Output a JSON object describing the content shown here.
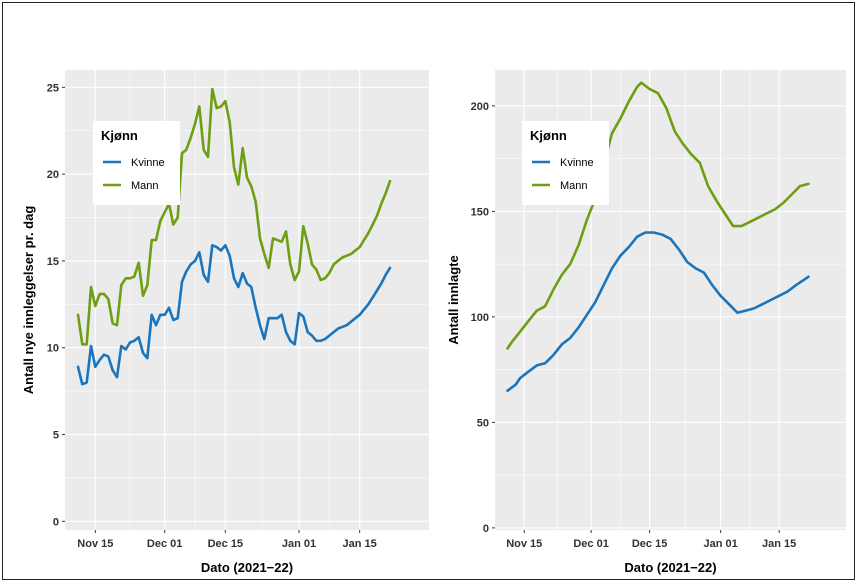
{
  "chart_data": [
    {
      "type": "line",
      "title": "",
      "xlabel": "Dato (2021−22)",
      "ylabel": "Antall nye innleggelser pr. dag",
      "xlim": [
        "2021-11-08",
        "2022-01-31"
      ],
      "ylim": [
        -0.5,
        26
      ],
      "y_ticks": [
        0,
        5,
        10,
        15,
        20,
        25
      ],
      "x_ticks": [
        {
          "date": "2021-11-15",
          "label": "Nov 15"
        },
        {
          "date": "2021-12-01",
          "label": "Dec 01"
        },
        {
          "date": "2021-12-15",
          "label": "Dec 15"
        },
        {
          "date": "2022-01-01",
          "label": "Jan 01"
        },
        {
          "date": "2022-01-15",
          "label": "Jan 15"
        }
      ],
      "grid": true,
      "legend": {
        "title": "Kjønn",
        "placement": "top-left"
      },
      "series": [
        {
          "name": "Kvinne",
          "color": "#1B75BC",
          "points": [
            [
              "2021-11-11",
              8.9
            ],
            [
              "2021-11-12",
              7.9
            ],
            [
              "2021-11-13",
              8.0
            ],
            [
              "2021-11-14",
              10.1
            ],
            [
              "2021-11-15",
              8.9
            ],
            [
              "2021-11-16",
              9.3
            ],
            [
              "2021-11-17",
              9.6
            ],
            [
              "2021-11-18",
              9.5
            ],
            [
              "2021-11-19",
              8.7
            ],
            [
              "2021-11-20",
              8.3
            ],
            [
              "2021-11-21",
              10.1
            ],
            [
              "2021-11-22",
              9.9
            ],
            [
              "2021-11-23",
              10.3
            ],
            [
              "2021-11-24",
              10.4
            ],
            [
              "2021-11-25",
              10.6
            ],
            [
              "2021-11-26",
              9.7
            ],
            [
              "2021-11-27",
              9.4
            ],
            [
              "2021-11-28",
              11.9
            ],
            [
              "2021-11-29",
              11.3
            ],
            [
              "2021-11-30",
              11.9
            ],
            [
              "2021-12-01",
              11.9
            ],
            [
              "2021-12-02",
              12.3
            ],
            [
              "2021-12-03",
              11.6
            ],
            [
              "2021-12-04",
              11.7
            ],
            [
              "2021-12-05",
              13.8
            ],
            [
              "2021-12-06",
              14.4
            ],
            [
              "2021-12-07",
              14.8
            ],
            [
              "2021-12-08",
              15.0
            ],
            [
              "2021-12-09",
              15.5
            ],
            [
              "2021-12-10",
              14.2
            ],
            [
              "2021-12-11",
              13.8
            ],
            [
              "2021-12-12",
              15.9
            ],
            [
              "2021-12-13",
              15.8
            ],
            [
              "2021-12-14",
              15.6
            ],
            [
              "2021-12-15",
              15.9
            ],
            [
              "2021-12-16",
              15.3
            ],
            [
              "2021-12-17",
              14.0
            ],
            [
              "2021-12-18",
              13.5
            ],
            [
              "2021-12-19",
              14.3
            ],
            [
              "2021-12-20",
              13.7
            ],
            [
              "2021-12-21",
              13.5
            ],
            [
              "2021-12-22",
              12.3
            ],
            [
              "2021-12-23",
              11.3
            ],
            [
              "2021-12-24",
              10.5
            ],
            [
              "2021-12-25",
              11.7
            ],
            [
              "2021-12-26",
              11.7
            ],
            [
              "2021-12-27",
              11.7
            ],
            [
              "2021-12-28",
              11.9
            ],
            [
              "2021-12-29",
              10.9
            ],
            [
              "2021-12-30",
              10.4
            ],
            [
              "2021-12-31",
              10.2
            ],
            [
              "2022-01-01",
              12.0
            ],
            [
              "2022-01-02",
              11.8
            ],
            [
              "2022-01-03",
              10.9
            ],
            [
              "2022-01-04",
              10.7
            ],
            [
              "2022-01-05",
              10.4
            ],
            [
              "2022-01-06",
              10.4
            ],
            [
              "2022-01-07",
              10.5
            ],
            [
              "2022-01-08",
              10.7
            ],
            [
              "2022-01-09",
              10.9
            ],
            [
              "2022-01-10",
              11.1
            ],
            [
              "2022-01-11",
              11.2
            ],
            [
              "2022-01-12",
              11.3
            ],
            [
              "2022-01-13",
              11.5
            ],
            [
              "2022-01-14",
              11.7
            ],
            [
              "2022-01-15",
              11.9
            ],
            [
              "2022-01-16",
              12.2
            ],
            [
              "2022-01-17",
              12.5
            ],
            [
              "2022-01-18",
              12.9
            ],
            [
              "2022-01-19",
              13.3
            ],
            [
              "2022-01-20",
              13.7
            ],
            [
              "2022-01-21",
              14.2
            ],
            [
              "2022-01-22",
              14.6
            ]
          ]
        },
        {
          "name": "Mann",
          "color": "#6E9E14",
          "points": [
            [
              "2021-11-11",
              11.9
            ],
            [
              "2021-11-12",
              10.2
            ],
            [
              "2021-11-13",
              10.2
            ],
            [
              "2021-11-14",
              13.5
            ],
            [
              "2021-11-15",
              12.4
            ],
            [
              "2021-11-16",
              13.1
            ],
            [
              "2021-11-17",
              13.1
            ],
            [
              "2021-11-18",
              12.8
            ],
            [
              "2021-11-19",
              11.4
            ],
            [
              "2021-11-20",
              11.3
            ],
            [
              "2021-11-21",
              13.6
            ],
            [
              "2021-11-22",
              14.0
            ],
            [
              "2021-11-23",
              14.0
            ],
            [
              "2021-11-24",
              14.1
            ],
            [
              "2021-11-25",
              14.9
            ],
            [
              "2021-11-26",
              13.0
            ],
            [
              "2021-11-27",
              13.6
            ],
            [
              "2021-11-28",
              16.2
            ],
            [
              "2021-11-29",
              16.2
            ],
            [
              "2021-11-30",
              17.3
            ],
            [
              "2021-12-01",
              17.8
            ],
            [
              "2021-12-02",
              18.3
            ],
            [
              "2021-12-03",
              17.1
            ],
            [
              "2021-12-04",
              17.5
            ],
            [
              "2021-12-05",
              21.2
            ],
            [
              "2021-12-06",
              21.4
            ],
            [
              "2021-12-07",
              22.1
            ],
            [
              "2021-12-08",
              22.9
            ],
            [
              "2021-12-09",
              23.9
            ],
            [
              "2021-12-10",
              21.4
            ],
            [
              "2021-12-11",
              21.0
            ],
            [
              "2021-12-12",
              24.9
            ],
            [
              "2021-12-13",
              23.8
            ],
            [
              "2021-12-14",
              23.9
            ],
            [
              "2021-12-15",
              24.2
            ],
            [
              "2021-12-16",
              23.0
            ],
            [
              "2021-12-17",
              20.4
            ],
            [
              "2021-12-18",
              19.4
            ],
            [
              "2021-12-19",
              21.5
            ],
            [
              "2021-12-20",
              19.8
            ],
            [
              "2021-12-21",
              19.3
            ],
            [
              "2021-12-22",
              18.4
            ],
            [
              "2021-12-23",
              16.3
            ],
            [
              "2021-12-24",
              15.4
            ],
            [
              "2021-12-25",
              14.6
            ],
            [
              "2021-12-26",
              16.3
            ],
            [
              "2021-12-27",
              16.2
            ],
            [
              "2021-12-28",
              16.1
            ],
            [
              "2021-12-29",
              16.7
            ],
            [
              "2021-12-30",
              14.8
            ],
            [
              "2021-12-31",
              13.9
            ],
            [
              "2022-01-01",
              14.4
            ],
            [
              "2022-01-02",
              17.0
            ],
            [
              "2022-01-03",
              16.0
            ],
            [
              "2022-01-04",
              14.8
            ],
            [
              "2022-01-05",
              14.5
            ],
            [
              "2022-01-06",
              13.9
            ],
            [
              "2022-01-07",
              14.0
            ],
            [
              "2022-01-08",
              14.3
            ],
            [
              "2022-01-09",
              14.8
            ],
            [
              "2022-01-10",
              15.0
            ],
            [
              "2022-01-11",
              15.2
            ],
            [
              "2022-01-12",
              15.3
            ],
            [
              "2022-01-13",
              15.4
            ],
            [
              "2022-01-14",
              15.6
            ],
            [
              "2022-01-15",
              15.8
            ],
            [
              "2022-01-16",
              16.2
            ],
            [
              "2022-01-17",
              16.6
            ],
            [
              "2022-01-18",
              17.1
            ],
            [
              "2022-01-19",
              17.6
            ],
            [
              "2022-01-20",
              18.3
            ],
            [
              "2022-01-21",
              18.9
            ],
            [
              "2022-01-22",
              19.6
            ]
          ]
        }
      ]
    },
    {
      "type": "line",
      "title": "",
      "xlabel": "Dato (2021−22)",
      "ylabel": "Antall innlagte",
      "xlim": [
        "2021-11-08",
        "2022-01-31"
      ],
      "ylim": [
        -1,
        217
      ],
      "y_ticks": [
        0,
        50,
        100,
        150,
        200
      ],
      "x_ticks": [
        {
          "date": "2021-11-15",
          "label": "Nov 15"
        },
        {
          "date": "2021-12-01",
          "label": "Dec 01"
        },
        {
          "date": "2021-12-15",
          "label": "Dec 15"
        },
        {
          "date": "2022-01-01",
          "label": "Jan 01"
        },
        {
          "date": "2022-01-15",
          "label": "Jan 15"
        }
      ],
      "grid": true,
      "legend": {
        "title": "Kjønn",
        "placement": "top-left"
      },
      "series": [
        {
          "name": "Kvinne",
          "color": "#1B75BC",
          "points": [
            [
              "2021-11-11",
              65
            ],
            [
              "2021-11-13",
              68
            ],
            [
              "2021-11-14",
              71
            ],
            [
              "2021-11-16",
              74
            ],
            [
              "2021-11-18",
              77
            ],
            [
              "2021-11-20",
              78
            ],
            [
              "2021-11-22",
              82
            ],
            [
              "2021-11-24",
              87
            ],
            [
              "2021-11-26",
              90
            ],
            [
              "2021-11-28",
              95
            ],
            [
              "2021-11-30",
              101
            ],
            [
              "2021-12-02",
              107
            ],
            [
              "2021-12-04",
              115
            ],
            [
              "2021-12-06",
              123
            ],
            [
              "2021-12-08",
              129
            ],
            [
              "2021-12-10",
              133
            ],
            [
              "2021-12-12",
              138
            ],
            [
              "2021-12-14",
              140
            ],
            [
              "2021-12-16",
              140
            ],
            [
              "2021-12-18",
              139
            ],
            [
              "2021-12-20",
              137
            ],
            [
              "2021-12-22",
              132
            ],
            [
              "2021-12-24",
              126
            ],
            [
              "2021-12-26",
              123
            ],
            [
              "2021-12-28",
              121
            ],
            [
              "2021-12-30",
              115
            ],
            [
              "2022-01-01",
              110
            ],
            [
              "2022-01-03",
              106
            ],
            [
              "2022-01-05",
              102
            ],
            [
              "2022-01-07",
              103
            ],
            [
              "2022-01-09",
              104
            ],
            [
              "2022-01-11",
              106
            ],
            [
              "2022-01-13",
              108
            ],
            [
              "2022-01-15",
              110
            ],
            [
              "2022-01-17",
              112
            ],
            [
              "2022-01-19",
              115
            ],
            [
              "2022-01-22",
              119
            ]
          ]
        },
        {
          "name": "Mann",
          "color": "#6E9E14",
          "points": [
            [
              "2021-11-11",
              85
            ],
            [
              "2021-11-12",
              88
            ],
            [
              "2021-11-14",
              93
            ],
            [
              "2021-11-16",
              98
            ],
            [
              "2021-11-18",
              103
            ],
            [
              "2021-11-20",
              105
            ],
            [
              "2021-11-22",
              113
            ],
            [
              "2021-11-24",
              120
            ],
            [
              "2021-11-26",
              125
            ],
            [
              "2021-11-28",
              134
            ],
            [
              "2021-11-30",
              146
            ],
            [
              "2021-12-02",
              156
            ],
            [
              "2021-12-04",
              172
            ],
            [
              "2021-12-06",
              187
            ],
            [
              "2021-12-08",
              194
            ],
            [
              "2021-12-10",
              202
            ],
            [
              "2021-12-12",
              209
            ],
            [
              "2021-12-13",
              211
            ],
            [
              "2021-12-15",
              208
            ],
            [
              "2021-12-17",
              206
            ],
            [
              "2021-12-19",
              199
            ],
            [
              "2021-12-21",
              188
            ],
            [
              "2021-12-23",
              182
            ],
            [
              "2021-12-25",
              177
            ],
            [
              "2021-12-27",
              173
            ],
            [
              "2021-12-29",
              162
            ],
            [
              "2021-12-31",
              155
            ],
            [
              "2022-01-02",
              149
            ],
            [
              "2022-01-04",
              143
            ],
            [
              "2022-01-06",
              143
            ],
            [
              "2022-01-08",
              145
            ],
            [
              "2022-01-10",
              147
            ],
            [
              "2022-01-12",
              149
            ],
            [
              "2022-01-14",
              151
            ],
            [
              "2022-01-16",
              154
            ],
            [
              "2022-01-18",
              158
            ],
            [
              "2022-01-20",
              162
            ],
            [
              "2022-01-22",
              163
            ]
          ]
        }
      ]
    }
  ]
}
